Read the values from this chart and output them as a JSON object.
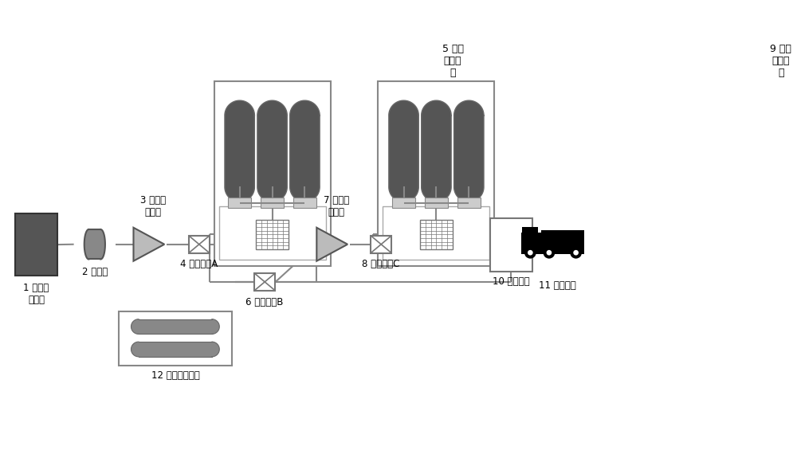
{
  "bg_color": "#ffffff",
  "dark_gray": "#555555",
  "mid_gray": "#888888",
  "tank_gray": "#666666",
  "box_edge": "#888888",
  "lc": "#888888",
  "labels": {
    "1": "1 现场制\n氢装置",
    "2": "2 缓冲罐",
    "3": "3 低压压\n缩单元",
    "4": "4 控制单元A",
    "5": "5 中压\n储氢单\n元",
    "6": "6 控制单元B",
    "7": "7 中压压\n缩单元",
    "8": "8 控制单元C",
    "9": "9 高压\n储氢单\n元",
    "10": "10 加注单元",
    "11": "11 加注车辆",
    "12": "12 备用管束单元"
  },
  "figsize": [
    10.0,
    5.7
  ],
  "dpi": 100
}
